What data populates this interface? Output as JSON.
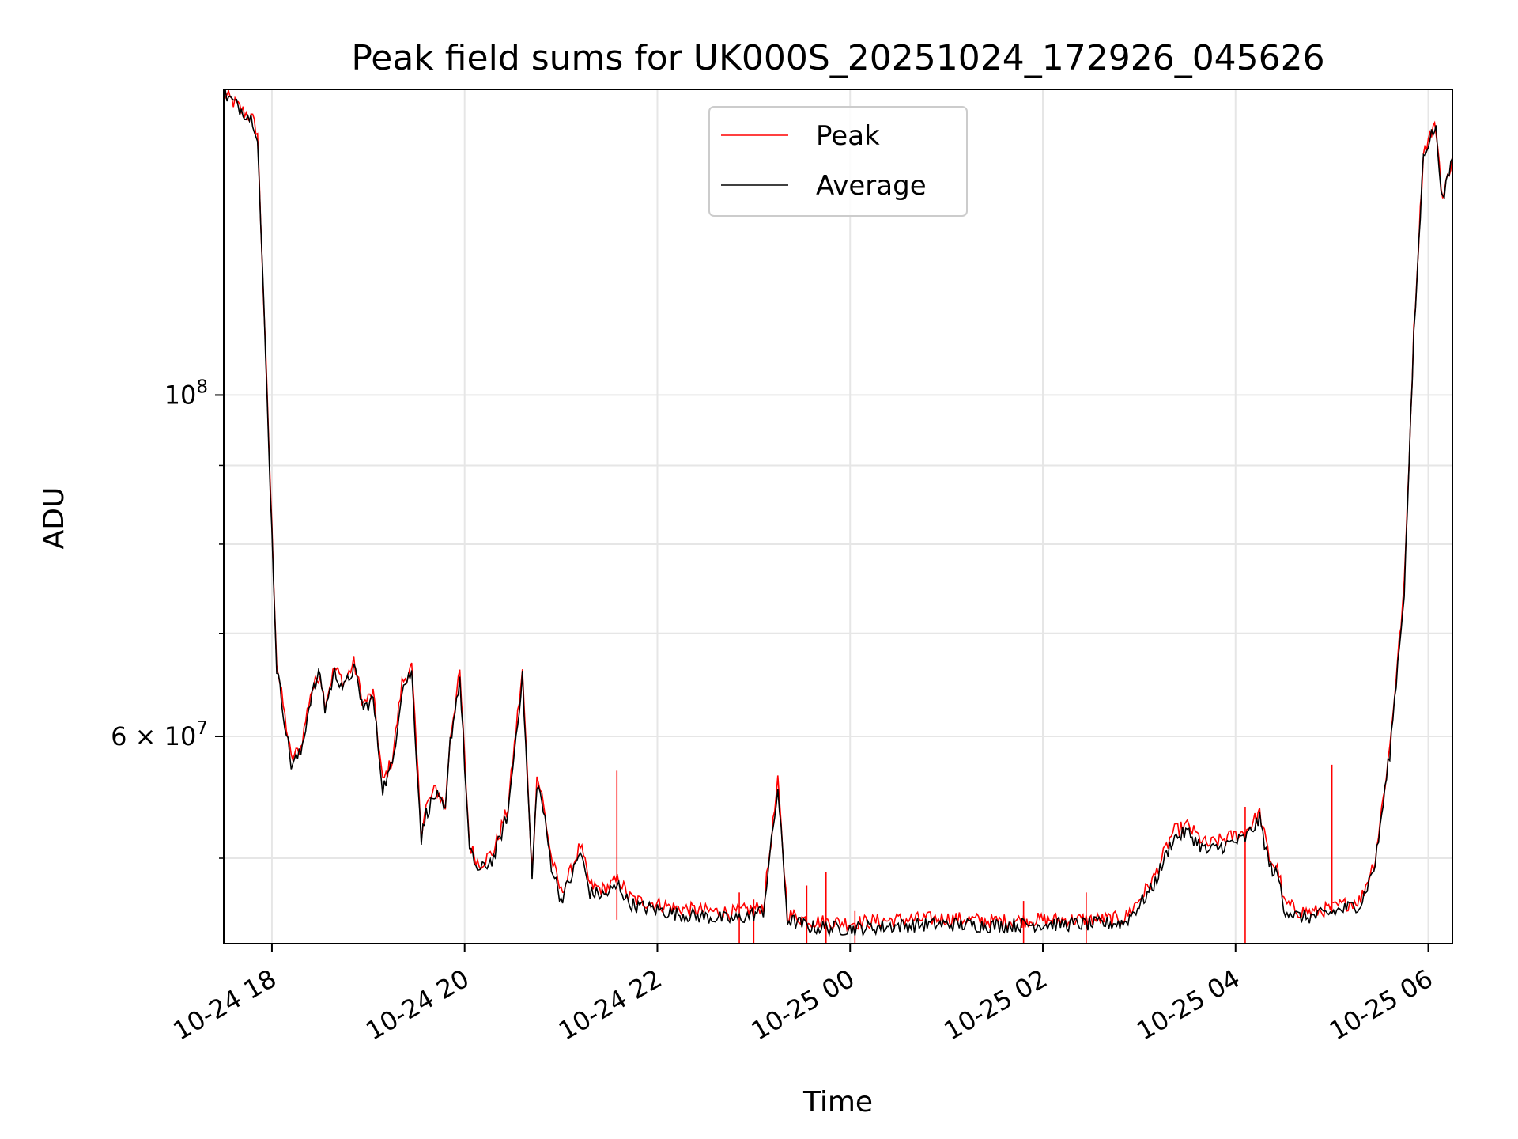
{
  "chart_data": {
    "type": "line",
    "title": "Peak field sums for UK000S_20251024_172926_045626",
    "xlabel": "Time",
    "ylabel": "ADU",
    "y_scale": "log",
    "ylim": [
      44000000,
      158000000
    ],
    "x_unit": "hours since 10-24 00:00",
    "xlim": [
      17.5,
      30.25
    ],
    "x_ticks": [
      {
        "value": 18,
        "label": "10-24 18"
      },
      {
        "value": 20,
        "label": "10-24 20"
      },
      {
        "value": 22,
        "label": "10-24 22"
      },
      {
        "value": 24,
        "label": "10-25 00"
      },
      {
        "value": 26,
        "label": "10-25 02"
      },
      {
        "value": 28,
        "label": "10-25 04"
      },
      {
        "value": 30,
        "label": "10-25 06"
      }
    ],
    "y_major_ticks": [
      {
        "value": 100000000,
        "base": "10",
        "exp": "8"
      },
      {
        "value": 60000000,
        "base": "6 × 10",
        "exp": "7"
      }
    ],
    "y_minor_ticks": [
      50000000,
      70000000,
      80000000,
      90000000
    ],
    "grid": true,
    "legend": {
      "location": "upper-center",
      "entries": [
        "Peak",
        "Average"
      ]
    },
    "series": [
      {
        "name": "Peak",
        "color": "#ff0000"
      },
      {
        "name": "Average",
        "color": "#000000"
      }
    ],
    "x": [
      17.5,
      17.7,
      17.8,
      17.85,
      17.95,
      18.05,
      18.2,
      18.3,
      18.4,
      18.5,
      18.55,
      18.65,
      18.75,
      18.85,
      18.95,
      19.05,
      19.15,
      19.25,
      19.35,
      19.45,
      19.55,
      19.6,
      19.7,
      19.8,
      19.85,
      19.95,
      20.05,
      20.15,
      20.3,
      20.45,
      20.55,
      20.6,
      20.7,
      20.75,
      20.8,
      20.9,
      21.0,
      21.1,
      21.2,
      21.3,
      21.45,
      21.6,
      21.7,
      21.8,
      22.0,
      22.2,
      22.5,
      22.8,
      23.1,
      23.25,
      23.35,
      23.45,
      23.6,
      24.0,
      24.5,
      25.0,
      25.5,
      26.0,
      26.5,
      26.85,
      27.0,
      27.15,
      27.35,
      27.5,
      27.7,
      27.9,
      28.1,
      28.25,
      28.35,
      28.45,
      28.5,
      28.65,
      28.8,
      29.0,
      29.3,
      29.45,
      29.6,
      29.75,
      29.85,
      29.95,
      30.05,
      30.08,
      30.15,
      30.25
    ],
    "peak": [
      157000000,
      153000000,
      151000000,
      148000000,
      100000000,
      67000000,
      58000000,
      59000000,
      64000000,
      66000000,
      63000000,
      66500000,
      65000000,
      67000000,
      63000000,
      64000000,
      56000000,
      58000000,
      65000000,
      66500000,
      52000000,
      54000000,
      55500000,
      54000000,
      60000000,
      66000000,
      51000000,
      49500000,
      50500000,
      54000000,
      62000000,
      66000000,
      49000000,
      56500000,
      55000000,
      50000000,
      47500000,
      49000000,
      51000000,
      48000000,
      47700000,
      48500000,
      47200000,
      46900000,
      46700000,
      46400000,
      46200000,
      46100000,
      46500000,
      56000000,
      46000000,
      45800000,
      45500000,
      45400000,
      45600000,
      45700000,
      45500000,
      45600000,
      45600000,
      45700000,
      47000000,
      48500000,
      52000000,
      52500000,
      51000000,
      51500000,
      52000000,
      53500000,
      50000000,
      49000000,
      46800000,
      46200000,
      46100000,
      46400000,
      47000000,
      50000000,
      59000000,
      75000000,
      110000000,
      144000000,
      149000000,
      149000000,
      134000000,
      143000000
    ],
    "average": [
      157000000,
      153000000,
      151000000,
      147500000,
      99500000,
      66500000,
      57500000,
      58500000,
      63500000,
      66000000,
      62500000,
      66000000,
      64500000,
      66500000,
      62500000,
      63500000,
      55500000,
      57500000,
      64500000,
      66000000,
      51500000,
      53500000,
      55000000,
      53500000,
      59500000,
      65500000,
      50500000,
      49000000,
      50000000,
      53500000,
      61500000,
      65500000,
      48500000,
      56000000,
      54500000,
      49500000,
      47000000,
      48500000,
      50500000,
      47500000,
      47300000,
      48000000,
      46800000,
      46500000,
      46300000,
      46000000,
      45800000,
      45600000,
      46200000,
      55500000,
      45600000,
      45400000,
      45100000,
      45000000,
      45200000,
      45300000,
      45200000,
      45300000,
      45300000,
      45400000,
      46600000,
      48000000,
      51500000,
      52000000,
      50500000,
      51000000,
      51500000,
      53000000,
      49500000,
      48500000,
      46400000,
      45800000,
      45800000,
      46100000,
      46700000,
      49600000,
      58500000,
      74500000,
      109000000,
      143500000,
      148500000,
      148500000,
      133500000,
      142500000
    ],
    "peak_spikes": [
      {
        "x": 21.58,
        "y": 57000000
      },
      {
        "x": 22.85,
        "y": 47500000
      },
      {
        "x": 23.0,
        "y": 47000000
      },
      {
        "x": 23.55,
        "y": 48000000
      },
      {
        "x": 23.75,
        "y": 49000000
      },
      {
        "x": 24.05,
        "y": 46200000
      },
      {
        "x": 25.8,
        "y": 46900000
      },
      {
        "x": 26.45,
        "y": 47500000
      },
      {
        "x": 28.1,
        "y": 54000000
      },
      {
        "x": 29.0,
        "y": 57500000
      }
    ]
  }
}
